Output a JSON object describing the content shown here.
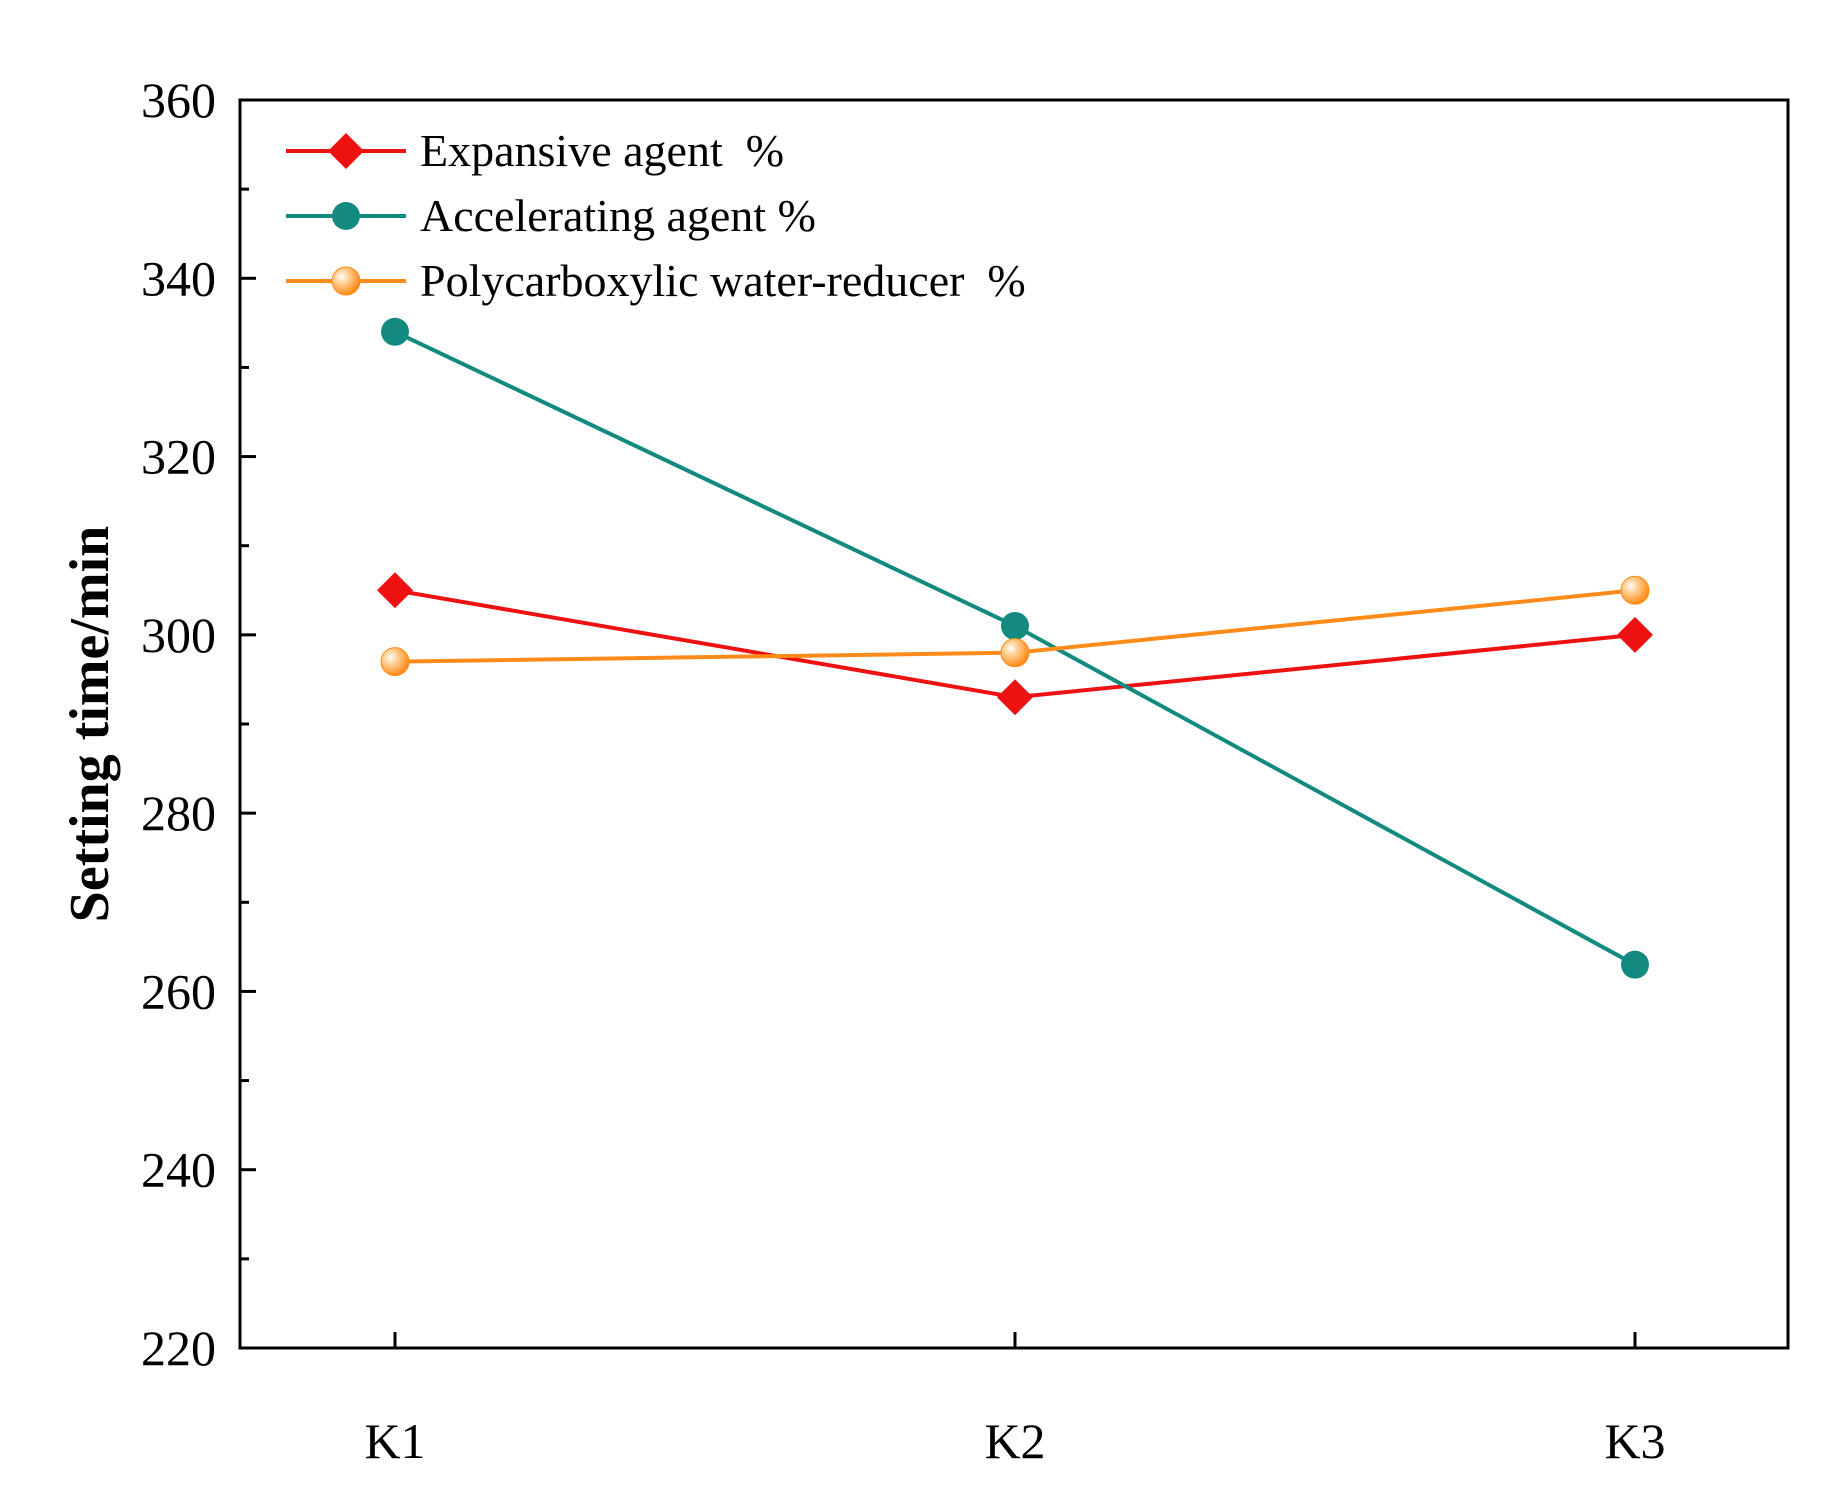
{
  "chart_data": {
    "type": "line",
    "title": "",
    "xlabel": "",
    "ylabel": "Setting time/min",
    "categories": [
      "K1",
      "K2",
      "K3"
    ],
    "ylim": [
      220,
      360
    ],
    "yticks": [
      220,
      240,
      260,
      280,
      300,
      320,
      340,
      360
    ],
    "grid": false,
    "legend_position": "top-left",
    "series": [
      {
        "name": "Expansive agent  %",
        "values": [
          305,
          293,
          300
        ],
        "color": "#ee1111",
        "marker": "diamond"
      },
      {
        "name": "Accelerating agent %",
        "values": [
          334,
          301,
          263
        ],
        "color": "#138a80",
        "marker": "circle"
      },
      {
        "name": "Polycarboxylic water-reducer  %",
        "values": [
          297,
          298,
          305
        ],
        "color": "#ff8c1a",
        "marker": "sphere"
      }
    ]
  }
}
